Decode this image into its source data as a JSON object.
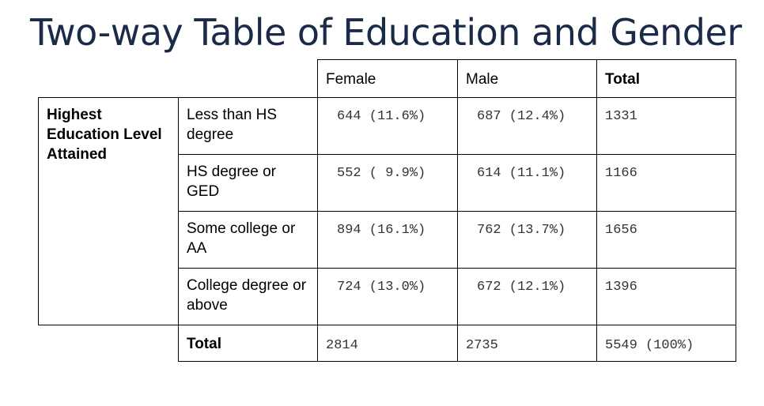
{
  "title": "Two-way Table of Education and Gender",
  "table": {
    "col_headers": [
      "Female",
      "Male",
      "Total"
    ],
    "row_group_label": "Highest Education Level Attained",
    "rows": [
      {
        "label": "Less than HS degree",
        "female": "644 (11.6%)",
        "male": "687 (12.4%)",
        "total": "1331"
      },
      {
        "label": "HS degree or GED",
        "female": "552 ( 9.9%)",
        "male": "614 (11.1%)",
        "total": "1166"
      },
      {
        "label": "Some college or AA",
        "female": "894 (16.1%)",
        "male": "762 (13.7%)",
        "total": "1656"
      },
      {
        "label": "College degree or above",
        "female": "724 (13.0%)",
        "male": "672 (12.1%)",
        "total": "1396"
      }
    ],
    "total_row": {
      "label": "Total",
      "female": "2814",
      "male": "2735",
      "total": "5549 (100%)"
    }
  }
}
